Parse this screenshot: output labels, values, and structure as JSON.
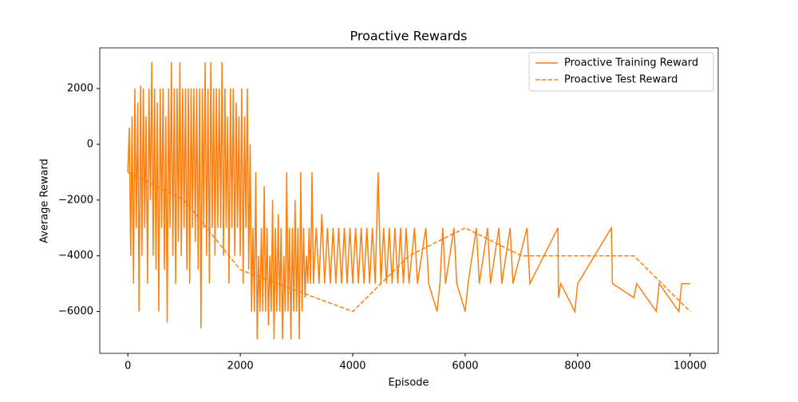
{
  "chart_data": {
    "type": "line",
    "title": "Proactive Rewards",
    "x_label": "Episode",
    "y_label": "Average Reward",
    "legend": "upper right",
    "xlim": [
      -500,
      10500
    ],
    "ylim": [
      -7500,
      3460
    ],
    "xticks": [
      0,
      2000,
      4000,
      6000,
      8000,
      10000
    ],
    "yticks": [
      {
        "value": -6000,
        "label": "−6000"
      },
      {
        "value": -4000,
        "label": "−4000"
      },
      {
        "value": -2000,
        "label": "−2000"
      },
      0,
      2000
    ],
    "series": [
      {
        "name": "Proactive Training Reward",
        "color": "#ff7f0e",
        "dash": "solid",
        "x": [
          0,
          25,
          50,
          75,
          100,
          125,
          150,
          175,
          200,
          225,
          250,
          275,
          300,
          325,
          350,
          375,
          400,
          425,
          450,
          475,
          500,
          525,
          550,
          575,
          600,
          625,
          650,
          675,
          700,
          725,
          750,
          775,
          800,
          825,
          850,
          875,
          900,
          925,
          950,
          975,
          1000,
          1025,
          1050,
          1075,
          1100,
          1125,
          1150,
          1175,
          1200,
          1225,
          1250,
          1275,
          1300,
          1325,
          1350,
          1375,
          1400,
          1425,
          1450,
          1475,
          1500,
          1525,
          1550,
          1575,
          1600,
          1625,
          1650,
          1675,
          1700,
          1725,
          1750,
          1775,
          1800,
          1825,
          1850,
          1875,
          1900,
          1925,
          1950,
          1975,
          2000,
          2025,
          2050,
          2075,
          2100,
          2125,
          2150,
          2175,
          2200,
          2225,
          2250,
          2275,
          2300,
          2325,
          2350,
          2375,
          2400,
          2425,
          2450,
          2475,
          2500,
          2525,
          2550,
          2575,
          2600,
          2625,
          2650,
          2675,
          2700,
          2725,
          2750,
          2775,
          2800,
          2825,
          2850,
          2875,
          2900,
          2925,
          2950,
          2975,
          3000,
          3025,
          3050,
          3075,
          3100,
          3125,
          3150,
          3175,
          3200,
          3225,
          3250,
          3275,
          3300,
          3350,
          3400,
          3450,
          3500,
          3550,
          3600,
          3650,
          3700,
          3750,
          3800,
          3850,
          3900,
          3950,
          4000,
          4050,
          4100,
          4150,
          4200,
          4250,
          4300,
          4350,
          4400,
          4450,
          4500,
          4550,
          4600,
          4650,
          4700,
          4750,
          4800,
          4850,
          4900,
          4950,
          5000,
          5100,
          5150,
          5300,
          5350,
          5500,
          5550,
          5600,
          5650,
          5800,
          5850,
          6000,
          6050,
          6200,
          6250,
          6400,
          6450,
          6600,
          6650,
          6800,
          6850,
          7100,
          7150,
          7650,
          7660,
          7700,
          7950,
          8000,
          8600,
          8620,
          9000,
          9050,
          9400,
          9450,
          9800,
          9850,
          10000
        ],
        "values": [
          -1000,
          600,
          -4000,
          1000,
          -5000,
          2000,
          -3000,
          1500,
          -6000,
          2100,
          -4000,
          2000,
          -3000,
          1000,
          -5000,
          2000,
          -2000,
          2950,
          -4000,
          2000,
          -4500,
          1500,
          -6000,
          2000,
          -3000,
          2000,
          -4500,
          1000,
          -6400,
          2000,
          -3000,
          2950,
          -4000,
          2000,
          -5000,
          2000,
          -3500,
          2950,
          -4000,
          2000,
          -3000,
          2000,
          -4500,
          2000,
          -5000,
          2000,
          -3000,
          2000,
          -3500,
          2000,
          -4500,
          2000,
          -6600,
          2000,
          -3000,
          2950,
          -4000,
          2000,
          -5000,
          2950,
          -3000,
          2000,
          -4000,
          2000,
          -3000,
          2000,
          -3000,
          2950,
          -4000,
          2000,
          -3000,
          1000,
          -5000,
          2000,
          -3000,
          2000,
          -4000,
          1500,
          -3000,
          1000,
          -4000,
          2000,
          -5000,
          1000,
          -3000,
          2000,
          -4500,
          0,
          -6000,
          -3000,
          -6000,
          -1000,
          -7000,
          -4000,
          -6000,
          -3000,
          -6000,
          -1500,
          -6000,
          -3000,
          -6500,
          -4000,
          -6000,
          -2000,
          -7000,
          -3000,
          -6000,
          -2500,
          -6000,
          -3000,
          -7000,
          -4000,
          -6000,
          -1000,
          -6000,
          -3000,
          -7000,
          -3000,
          -6000,
          -2000,
          -6000,
          -3000,
          -7000,
          -1000,
          -6000,
          -3000,
          -5500,
          -4000,
          -5000,
          -3000,
          -5000,
          -1000,
          -5000,
          -3000,
          -5000,
          -2500,
          -5000,
          -3000,
          -5000,
          -3000,
          -5000,
          -3000,
          -5000,
          -3000,
          -5000,
          -3000,
          -5000,
          -3000,
          -5000,
          -3000,
          -5000,
          -3000,
          -5000,
          -3000,
          -5000,
          -1000,
          -5000,
          -3000,
          -5000,
          -3000,
          -5000,
          -3000,
          -5000,
          -3000,
          -5000,
          -3000,
          -5000,
          -3000,
          -5000,
          -3000,
          -5000,
          -6000,
          -5000,
          -3000,
          -5000,
          -3000,
          -5000,
          -6000,
          -5000,
          -3000,
          -5000,
          -3000,
          -5000,
          -3000,
          -5000,
          -3000,
          -5000,
          -3000,
          -5000,
          -3000,
          -5500,
          -5000,
          -6000,
          -5000,
          -3000,
          -5000,
          -5500,
          -5000,
          -6000,
          -5000,
          -6000,
          -5000,
          -5000
        ]
      },
      {
        "name": "Proactive Test Reward",
        "color": "#ff7f0e",
        "dash": "dashed",
        "x": [
          0,
          1000,
          2000,
          3000,
          4000,
          5000,
          6000,
          7000,
          8000,
          9000,
          10000
        ],
        "values": [
          -1000,
          -2000,
          -4500,
          -5250,
          -6000,
          -4000,
          -3000,
          -4000,
          -4000,
          -4000,
          -6000
        ]
      }
    ]
  }
}
